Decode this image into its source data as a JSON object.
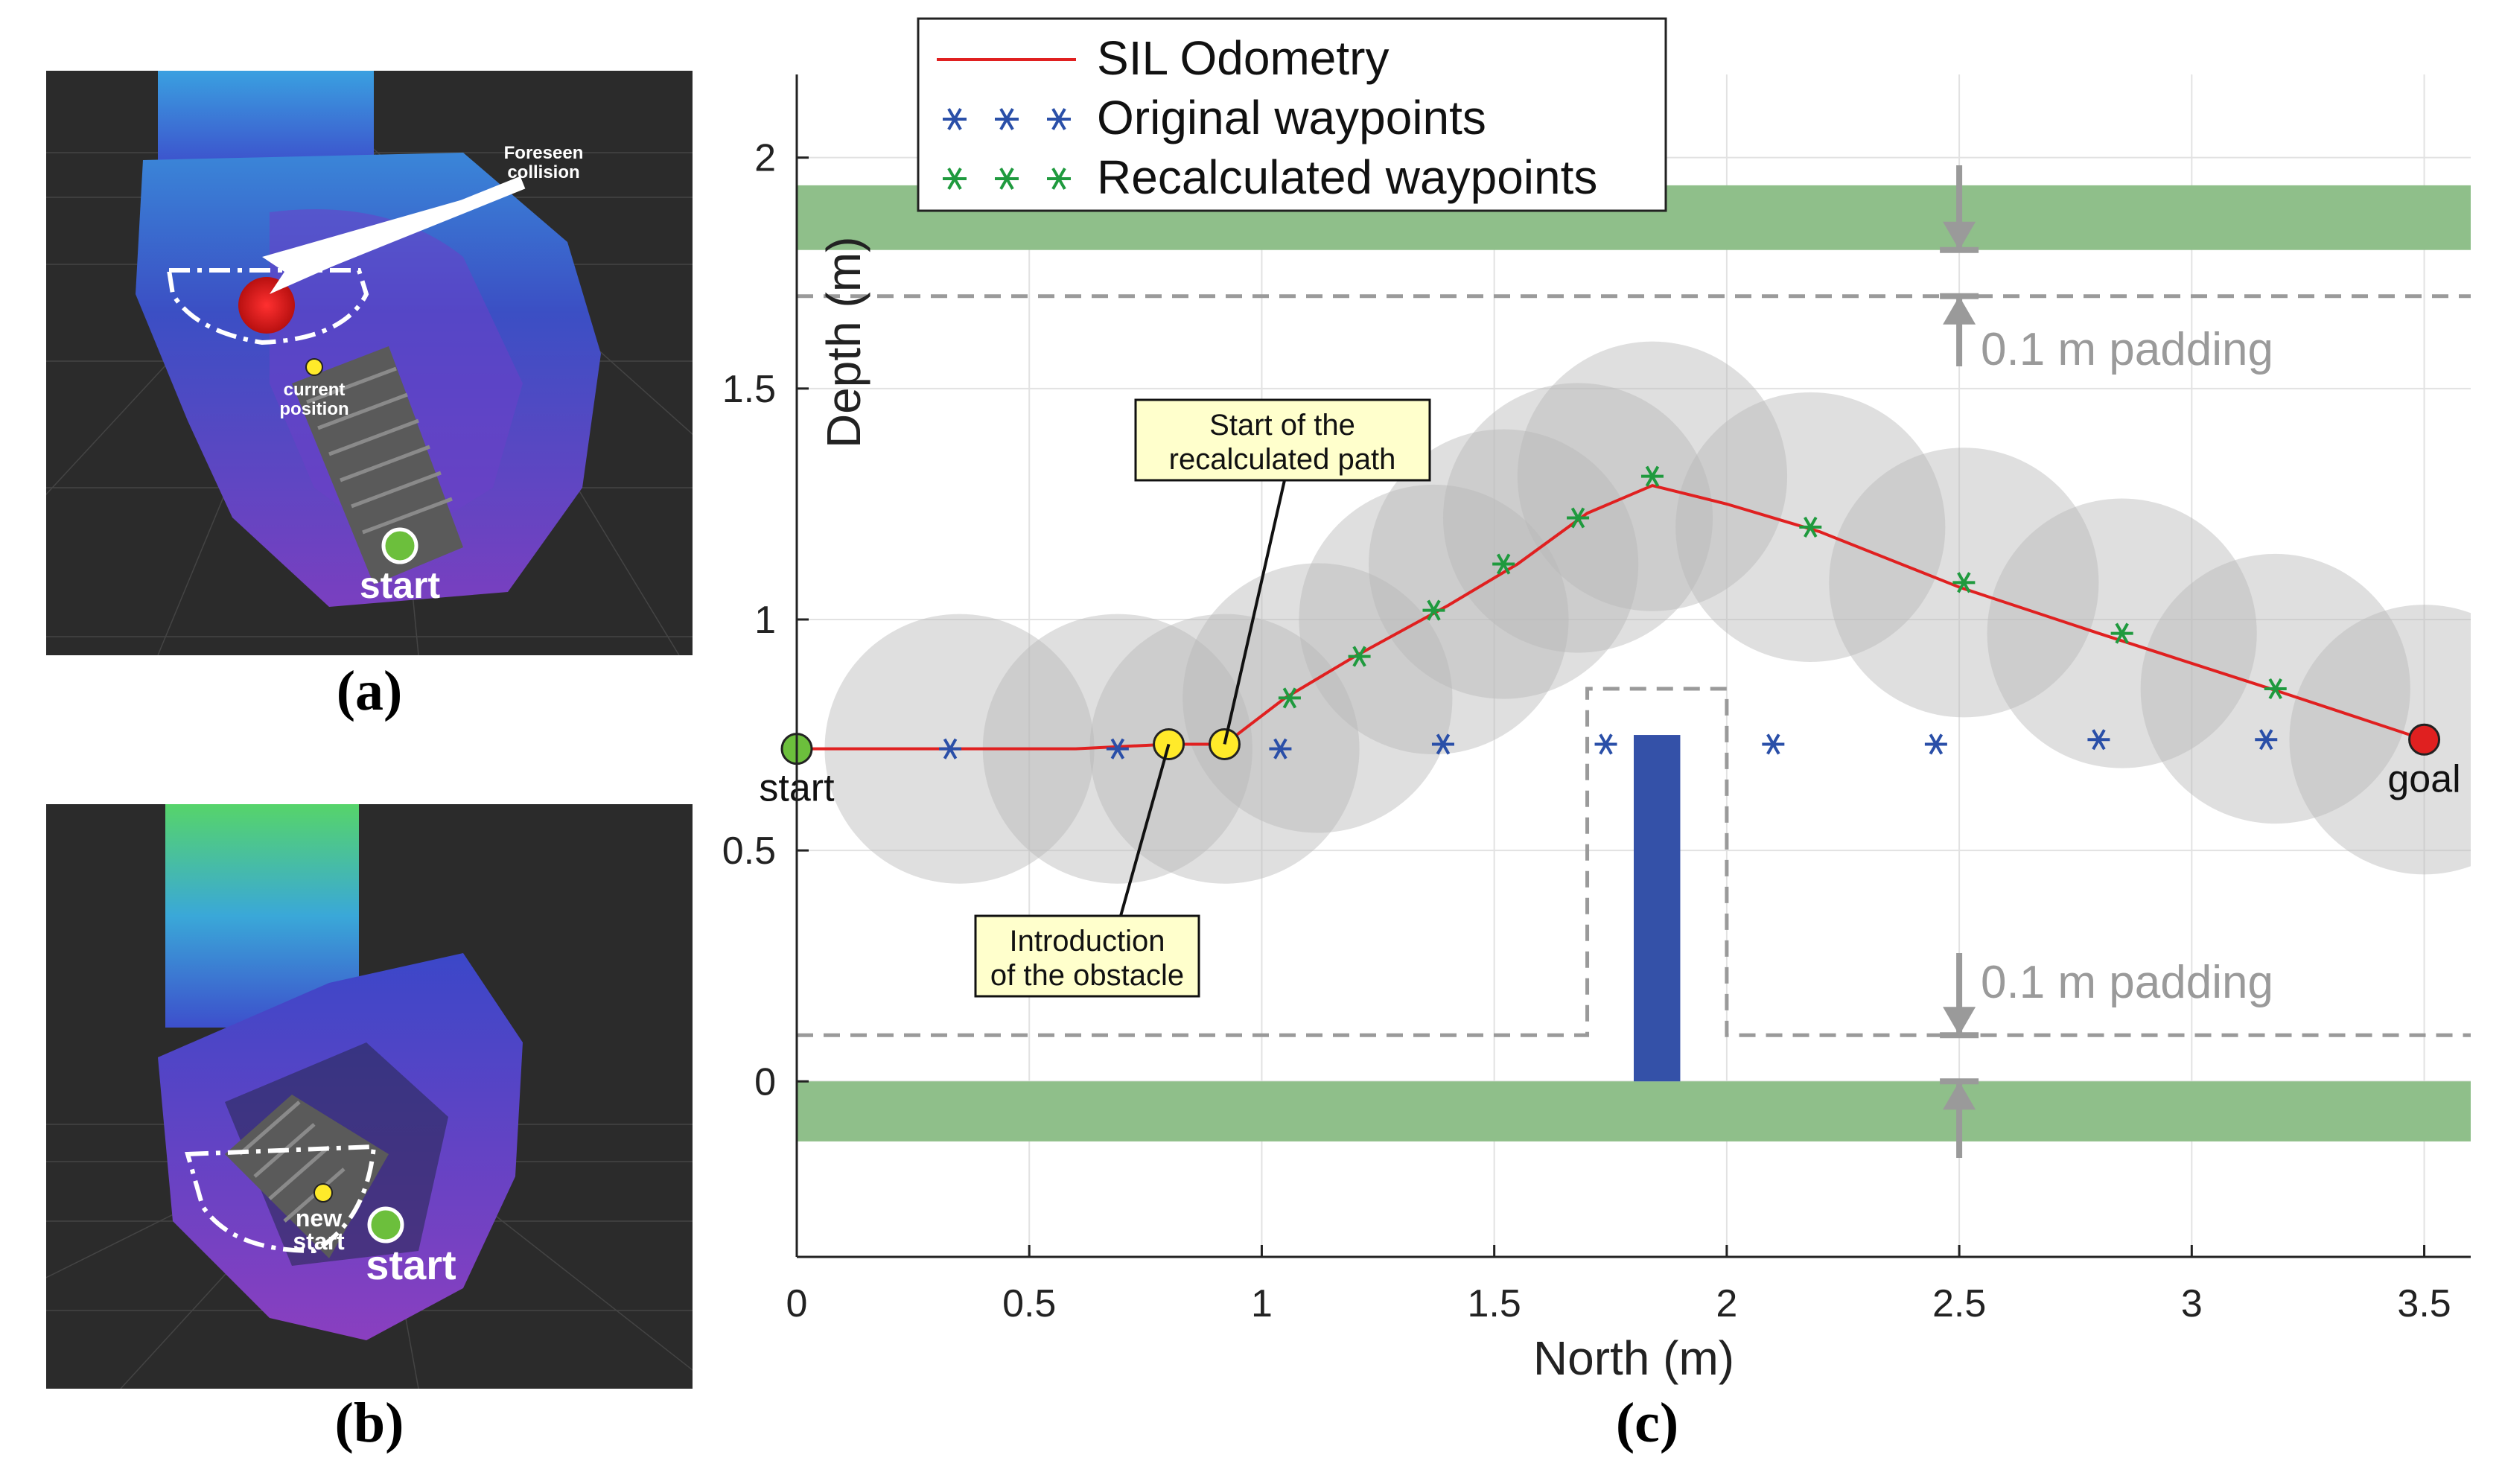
{
  "figure": {
    "caption_a": "(a)",
    "caption_b": "(b)",
    "caption_c": "(c)"
  },
  "panel_a": {
    "foreseen_collision": [
      "Foreseen",
      "collision"
    ],
    "current_position": [
      "current",
      "position"
    ],
    "start_label": "start"
  },
  "panel_b": {
    "new_start": [
      "new",
      "start"
    ],
    "start_label": "start"
  },
  "colors": {
    "odometry": "#e02020",
    "original_waypoints": "#2a4fa8",
    "recalculated_waypoints": "#1f9a3e",
    "wall_band": "#8fbf8a",
    "obstacle": "#3451a8",
    "safety_circle": "#b8b8b8",
    "start_marker": "#6cbf3c",
    "goal_marker": "#e02020",
    "event_marker": "#ffea2a"
  },
  "chart_data": {
    "type": "line",
    "xlabel": "North (m)",
    "ylabel": "Depth (m)",
    "xlim": [
      0,
      3.6
    ],
    "ylim": [
      -0.38,
      2.18
    ],
    "xticks": [
      0,
      0.5,
      1,
      1.5,
      2,
      2.5,
      3,
      3.5
    ],
    "xtick_labels": [
      "0",
      "0.5",
      "1",
      "1.5",
      "2",
      "2.5",
      "3",
      "3.5"
    ],
    "yticks": [
      0,
      0.5,
      1,
      1.5,
      2
    ],
    "ytick_labels": [
      "0",
      "0.5",
      "1",
      "1.5",
      "2"
    ],
    "grid": true,
    "legend_position": "top-left",
    "legend": [
      "SIL Odometry",
      "Original waypoints",
      "Recalculated waypoints"
    ],
    "series": [
      {
        "name": "SIL Odometry",
        "marker": "line",
        "x": [
          0,
          0.3,
          0.6,
          0.8,
          0.92,
          1.05,
          1.2,
          1.4,
          1.55,
          1.7,
          1.84,
          2.0,
          2.2,
          2.5,
          2.8,
          3.2,
          3.5
        ],
        "y": [
          0.72,
          0.72,
          0.72,
          0.73,
          0.73,
          0.83,
          0.92,
          1.03,
          1.12,
          1.23,
          1.29,
          1.25,
          1.19,
          1.07,
          0.97,
          0.84,
          0.74
        ]
      },
      {
        "name": "Original waypoints",
        "marker": "asterisk",
        "x": [
          0.33,
          0.69,
          1.04,
          1.39,
          1.74,
          2.1,
          2.45,
          2.8,
          3.16
        ],
        "y": [
          0.72,
          0.72,
          0.72,
          0.73,
          0.73,
          0.73,
          0.73,
          0.74,
          0.74
        ]
      },
      {
        "name": "Recalculated waypoints",
        "marker": "asterisk",
        "x": [
          1.06,
          1.21,
          1.37,
          1.52,
          1.68,
          1.84,
          2.18,
          2.51,
          2.85,
          3.18
        ],
        "y": [
          0.83,
          0.92,
          1.02,
          1.12,
          1.22,
          1.31,
          1.2,
          1.08,
          0.97,
          0.85
        ]
      }
    ],
    "safety_circles": {
      "radius": 0.29,
      "x": [
        0.35,
        0.69,
        0.92,
        1.12,
        1.37,
        1.52,
        1.68,
        1.84,
        2.18,
        2.51,
        2.85,
        3.18,
        3.5
      ],
      "y": [
        0.72,
        0.72,
        0.72,
        0.83,
        1.0,
        1.12,
        1.22,
        1.31,
        1.2,
        1.08,
        0.97,
        0.85,
        0.74
      ]
    },
    "walls": [
      {
        "y0": 1.8,
        "y1": 1.94
      },
      {
        "y0": -0.13,
        "y1": 0.0
      }
    ],
    "padding_lines": [
      1.7,
      0.1
    ],
    "obstacle": {
      "x0": 1.8,
      "x1": 1.9,
      "y0": 0.0,
      "y1": 0.75
    },
    "obstacle_padding": {
      "x0": 1.7,
      "x1": 2.0,
      "y_top": 0.85
    },
    "start": {
      "x": 0,
      "y": 0.72,
      "label": "start"
    },
    "goal": {
      "x": 3.5,
      "y": 0.74,
      "label": "goal"
    },
    "events": [
      {
        "x": 0.8,
        "y": 0.73,
        "label": [
          "Introduction",
          "of the obstacle"
        ]
      },
      {
        "x": 0.92,
        "y": 0.73,
        "label": [
          "Start of the",
          "recalculated path"
        ]
      }
    ],
    "padding_annotations": [
      "0.1 m padding",
      "0.1 m padding"
    ]
  }
}
